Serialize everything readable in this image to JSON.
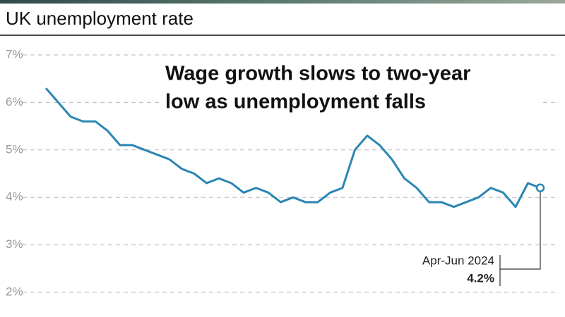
{
  "chart_data": {
    "type": "line",
    "title": "UK unemployment rate",
    "subtitle": [
      "Wage growth slows to two-year",
      "low as unemployment falls"
    ],
    "categories": [
      null,
      null,
      null,
      null,
      null,
      null,
      null,
      null,
      null,
      null,
      null,
      null,
      null,
      null,
      null,
      null,
      null,
      null,
      null,
      null,
      null,
      null,
      null,
      null,
      null,
      null,
      null,
      null,
      null,
      null,
      null,
      null,
      null,
      null,
      null,
      null,
      null,
      null,
      null,
      null,
      "Apr-Jun 2024"
    ],
    "values": [
      6.3,
      6.0,
      5.7,
      5.6,
      5.6,
      5.4,
      5.1,
      5.1,
      5.0,
      4.9,
      4.8,
      4.6,
      4.5,
      4.3,
      4.4,
      4.3,
      4.1,
      4.2,
      4.1,
      3.9,
      4.0,
      3.9,
      3.9,
      4.1,
      4.2,
      5.0,
      5.3,
      5.1,
      4.8,
      4.4,
      4.2,
      3.9,
      3.9,
      3.8,
      3.9,
      4.0,
      4.2,
      4.1,
      3.8,
      4.3,
      4.2
    ],
    "value_labels": [
      null,
      null,
      null,
      null,
      null,
      null,
      null,
      null,
      null,
      null,
      null,
      null,
      null,
      null,
      null,
      null,
      null,
      null,
      null,
      null,
      null,
      null,
      null,
      null,
      null,
      null,
      null,
      null,
      null,
      null,
      null,
      null,
      null,
      null,
      null,
      null,
      null,
      null,
      null,
      null,
      "4.2%"
    ],
    "color": "#2a86b3",
    "ylim": [
      2,
      7
    ],
    "yticks": [
      {
        "value": 2,
        "label": "2%"
      },
      {
        "value": 3,
        "label": "3%"
      },
      {
        "value": 4,
        "label": "4%"
      },
      {
        "value": 5,
        "label": "5%"
      },
      {
        "value": 6,
        "label": "6%"
      },
      {
        "value": 7,
        "label": "7%"
      }
    ],
    "grid": true
  }
}
